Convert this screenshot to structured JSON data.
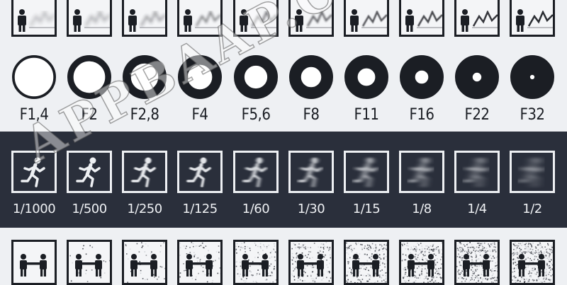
{
  "depth_row": {
    "count": 10
  },
  "aperture_row": {
    "labels": [
      "F1,4",
      "F2",
      "F2,8",
      "F4",
      "F5,6",
      "F8",
      "F11",
      "F16",
      "F22",
      "F32"
    ],
    "opening_fraction": [
      0.88,
      0.72,
      0.62,
      0.56,
      0.52,
      0.46,
      0.4,
      0.3,
      0.2,
      0.1
    ]
  },
  "shutter_row": {
    "labels": [
      "1/1000",
      "1/500",
      "1/250",
      "1/125",
      "1/60",
      "1/30",
      "1/15",
      "1/8",
      "1/4",
      "1/2"
    ],
    "blur_level": [
      0,
      0,
      0.5,
      1,
      2,
      3,
      4,
      5,
      6,
      7
    ]
  },
  "iso_row": {
    "noise_level": [
      0,
      0.05,
      0.1,
      0.18,
      0.28,
      0.38,
      0.5,
      0.62,
      0.75,
      0.88
    ]
  },
  "watermark": {
    "text": "APPBAAP.COM"
  },
  "colors": {
    "ink": "#1b1e24",
    "light": "#eef0f3",
    "dark_band": "#2a2f3b"
  }
}
